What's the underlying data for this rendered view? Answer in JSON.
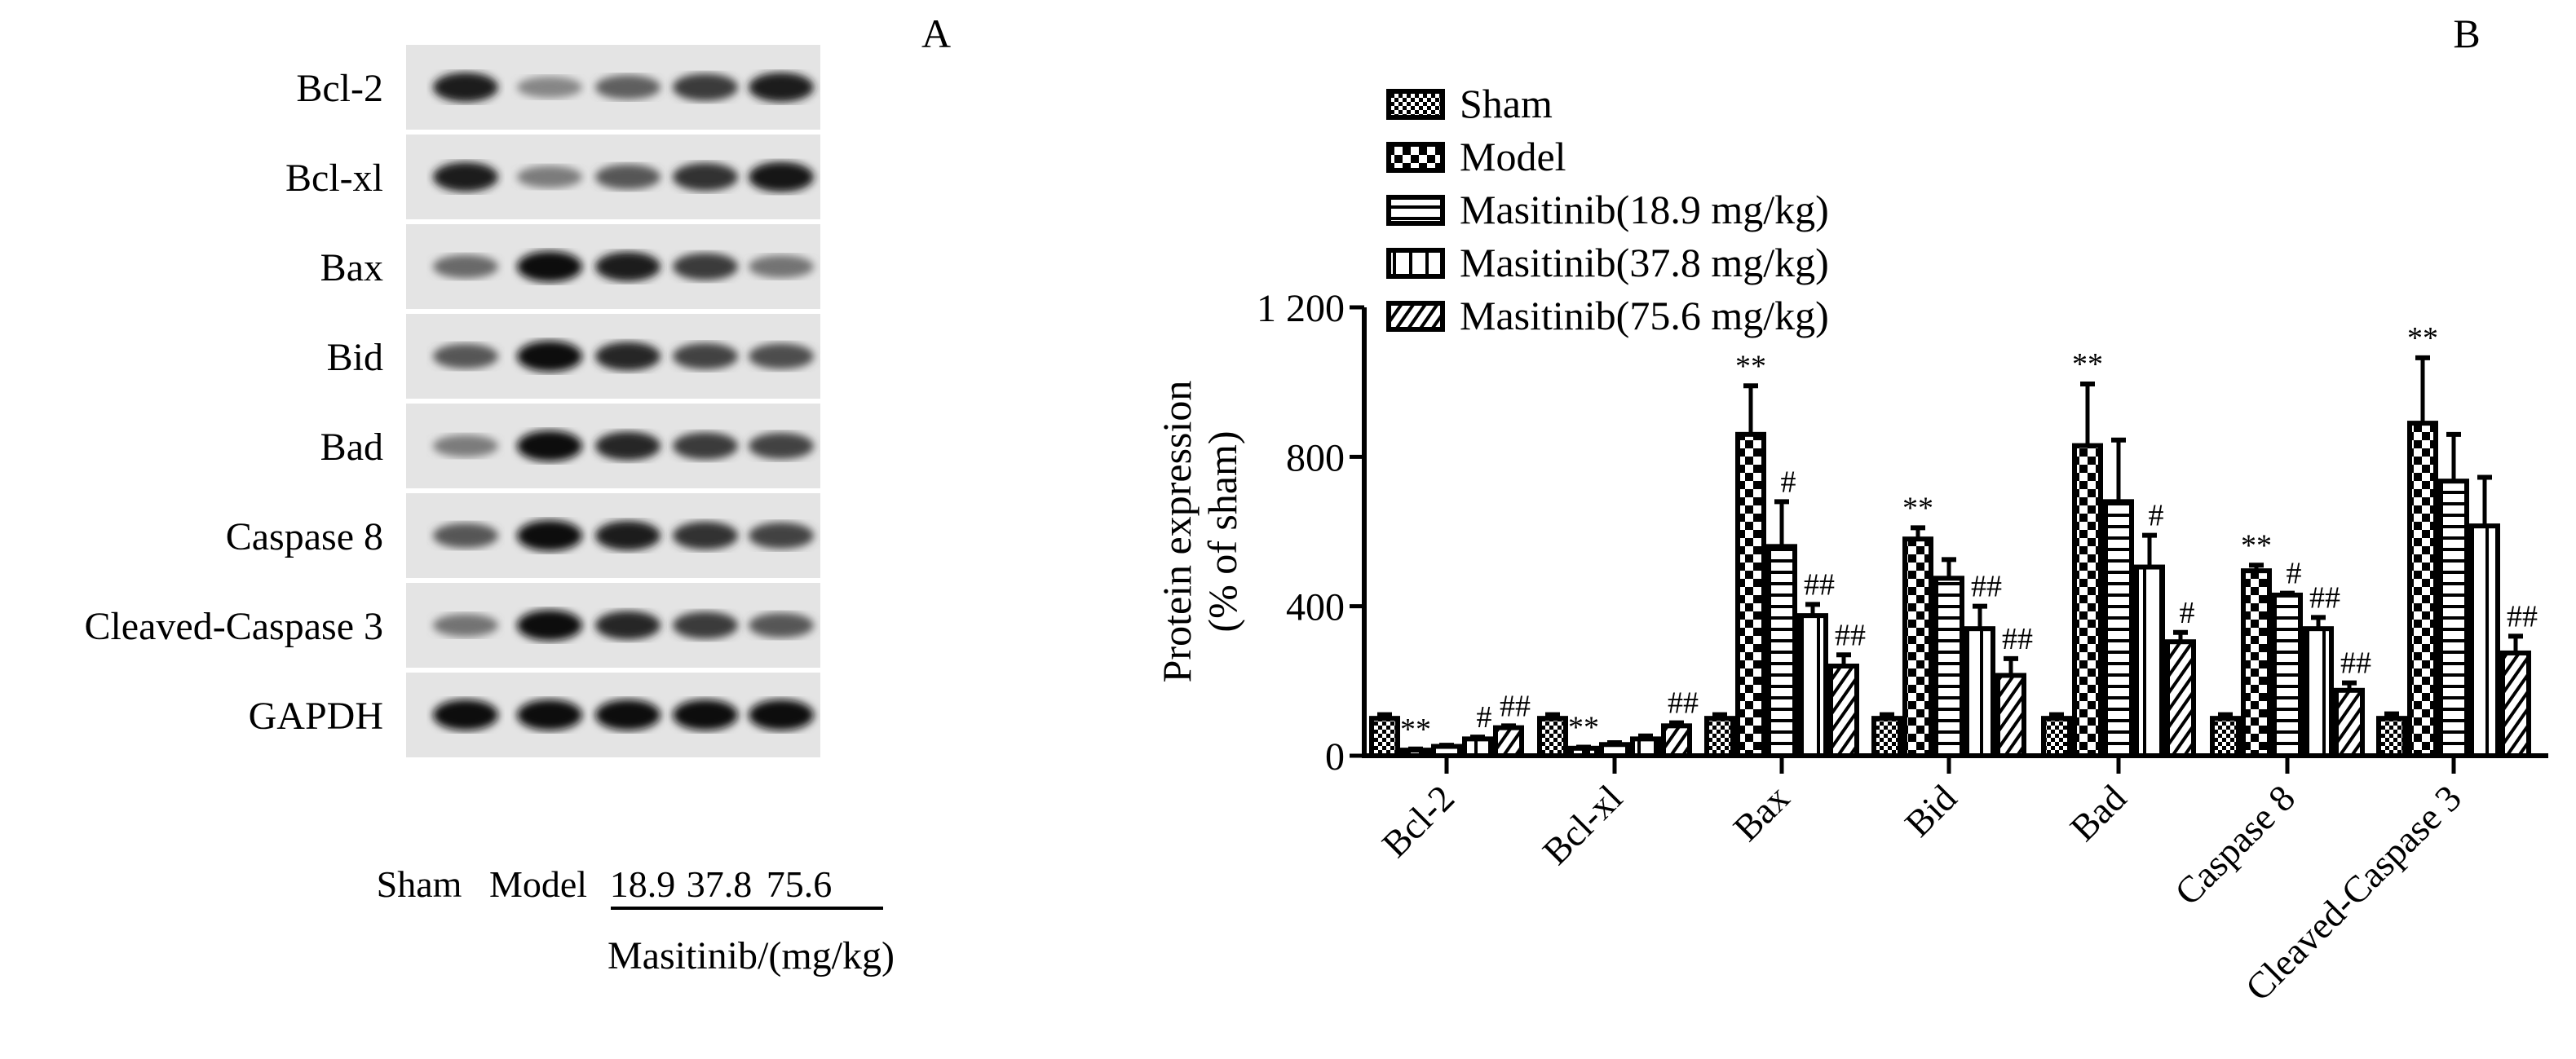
{
  "panel_a": {
    "letter": "A",
    "rows": [
      {
        "label": "Bcl-2",
        "bands": [
          0.9,
          0.35,
          0.55,
          0.75,
          0.9
        ]
      },
      {
        "label": "Bcl-xl",
        "bands": [
          0.9,
          0.4,
          0.6,
          0.8,
          0.95
        ]
      },
      {
        "label": "Bax",
        "bands": [
          0.5,
          1,
          0.9,
          0.75,
          0.45
        ]
      },
      {
        "label": "Bid",
        "bands": [
          0.6,
          1,
          0.85,
          0.7,
          0.65
        ]
      },
      {
        "label": "Bad",
        "bands": [
          0.4,
          1,
          0.85,
          0.75,
          0.7
        ]
      },
      {
        "label": "Caspase 8",
        "bands": [
          0.6,
          1,
          0.9,
          0.8,
          0.7
        ]
      },
      {
        "label": "Cleaved-Caspase 3",
        "bands": [
          0.45,
          1,
          0.85,
          0.75,
          0.6
        ]
      },
      {
        "label": "GAPDH",
        "bands": [
          1,
          1,
          1,
          1,
          1
        ]
      }
    ],
    "lanes": [
      "Sham",
      "Model",
      "18.9",
      "37.8",
      "75.6"
    ],
    "group_label": "Masitinib/(mg/kg)"
  },
  "chart_data": {
    "type": "bar",
    "panel_letter": "B",
    "ylabel": [
      "Protein expression",
      "(% of sham)"
    ],
    "ylim": [
      0,
      1200
    ],
    "yticks": [
      0,
      400,
      800,
      1200
    ],
    "ytick_labels": [
      "0",
      "400",
      "800",
      "1 200"
    ],
    "categories": [
      "Bcl-2",
      "Bcl-xl",
      "Bax",
      "Bid",
      "Bad",
      "Caspase 8",
      "Cleaved-Caspase 3"
    ],
    "legend_position": "top-left",
    "series": [
      {
        "name": "Sham",
        "values": [
          100,
          100,
          100,
          100,
          100,
          100,
          100
        ],
        "errors": [
          10,
          10,
          10,
          10,
          10,
          10,
          12
        ],
        "marks": [
          "",
          "",
          "",
          "",
          "",
          "",
          ""
        ]
      },
      {
        "name": "Model",
        "values": [
          15,
          20,
          860,
          580,
          830,
          495,
          890
        ],
        "errors": [
          3,
          3,
          130,
          30,
          165,
          15,
          175
        ],
        "marks": [
          "**",
          "**",
          "**",
          "**",
          "**",
          "**",
          "**"
        ]
      },
      {
        "name": "Masitinib(18.9 mg/kg)",
        "values": [
          25,
          30,
          560,
          475,
          680,
          430,
          735
        ],
        "errors": [
          3,
          5,
          120,
          50,
          165,
          5,
          125
        ],
        "marks": [
          "",
          "",
          "#",
          "",
          "",
          "#",
          ""
        ]
      },
      {
        "name": "Masitinib(37.8 mg/kg)",
        "values": [
          45,
          45,
          375,
          340,
          505,
          340,
          615
        ],
        "errors": [
          5,
          8,
          30,
          60,
          85,
          30,
          130
        ],
        "marks": [
          "#",
          "",
          "##",
          "##",
          "#",
          "##",
          ""
        ]
      },
      {
        "name": "Masitinib(75.6 mg/kg)",
        "values": [
          75,
          80,
          240,
          215,
          305,
          175,
          275
        ],
        "errors": [
          5,
          8,
          30,
          45,
          25,
          20,
          45
        ],
        "marks": [
          "##",
          "##",
          "##",
          "##",
          "#",
          "##",
          "##"
        ]
      }
    ]
  }
}
